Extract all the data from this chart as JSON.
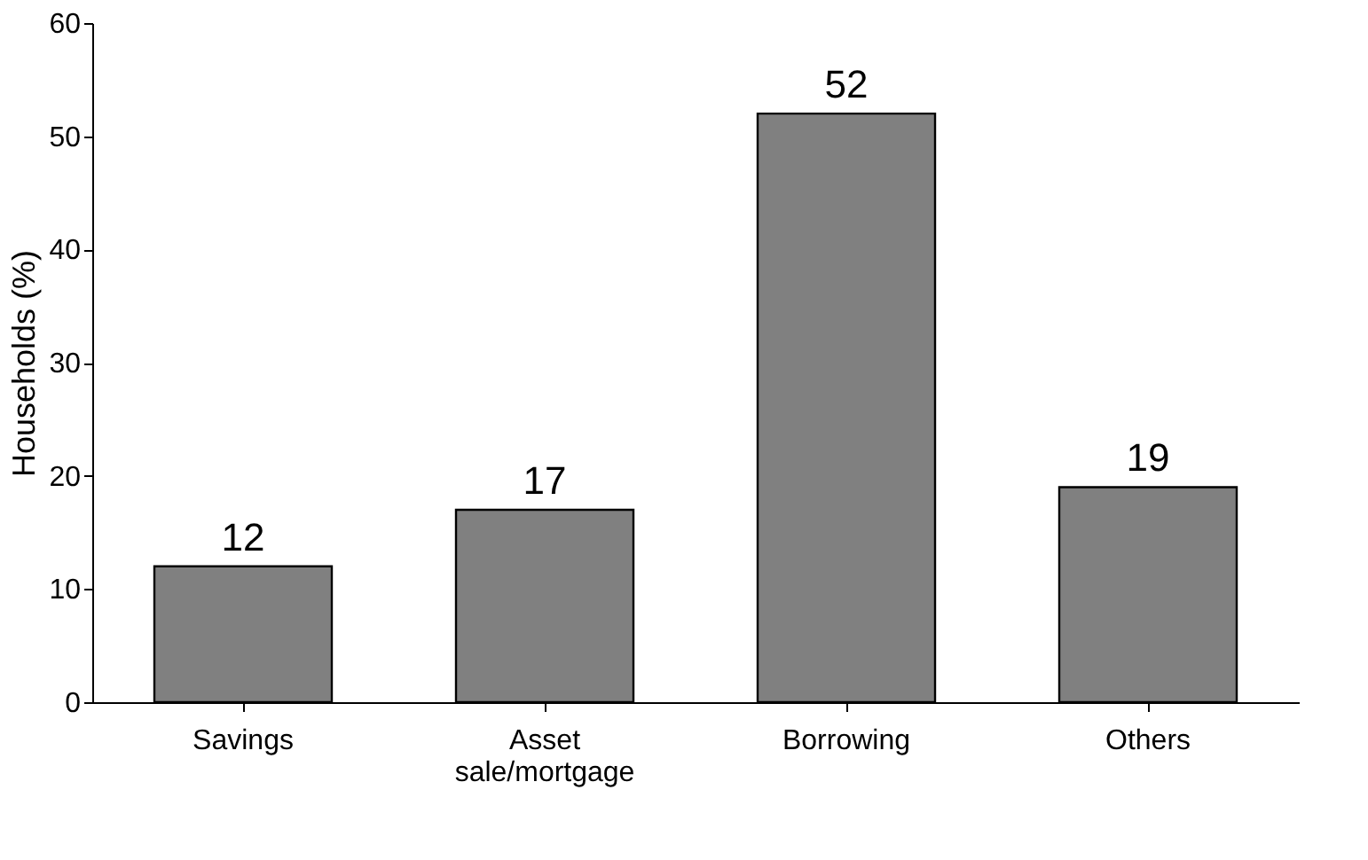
{
  "chart_data": {
    "type": "bar",
    "ylabel": "Households (%)",
    "categories": [
      "Savings",
      "Asset sale/mortgage",
      "Borrowing",
      "Others"
    ],
    "values": [
      12,
      17,
      52,
      19
    ],
    "color": "#808080",
    "ylim": [
      0,
      60
    ],
    "yticks": [
      0,
      10,
      20,
      30,
      40,
      50,
      60
    ],
    "grid": false,
    "data_labels": true
  }
}
